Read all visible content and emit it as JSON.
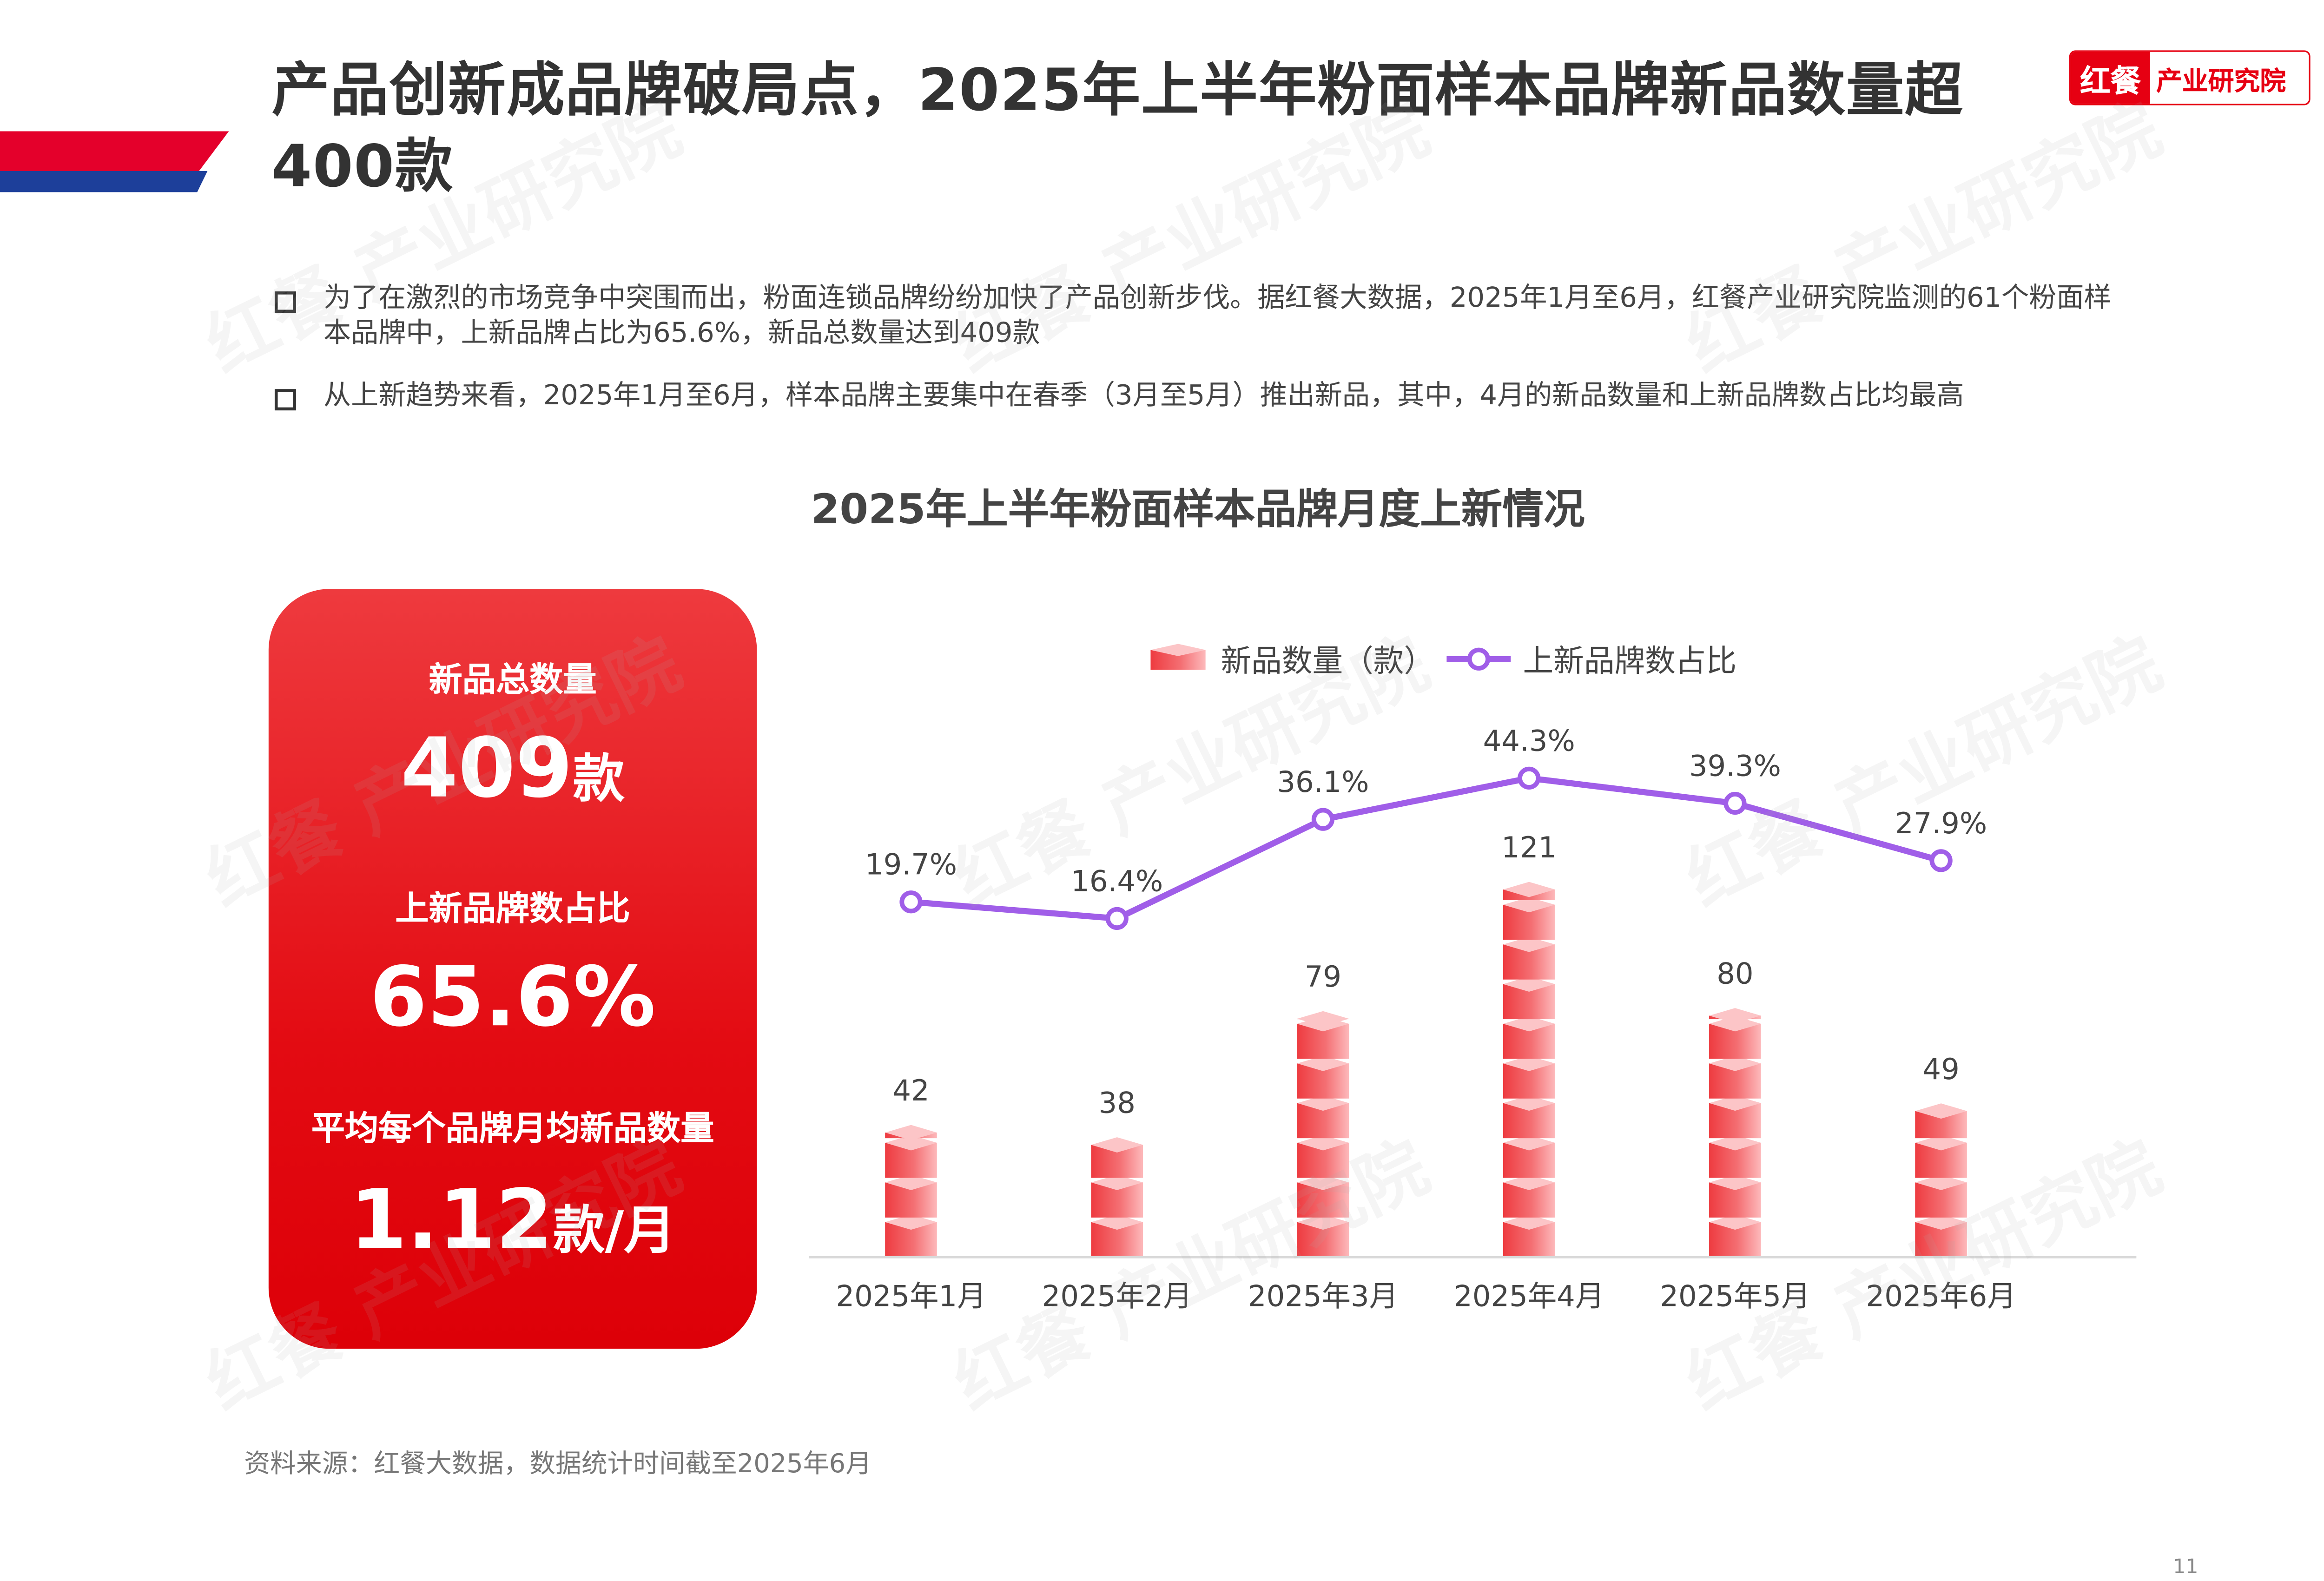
{
  "header": {
    "title": "产品创新成品牌破局点，2025年上半年粉面样本品牌新品数量超400款",
    "logo_mark": "红餐",
    "logo_text": "产业研究院"
  },
  "bullets": [
    "为了在激烈的市场竞争中突围而出，粉面连锁品牌纷纷加快了产品创新步伐。据红餐大数据，2025年1月至6月，红餐产业研究院监测的61个粉面样本品牌中，上新品牌占比为65.6%，新品总数量达到409款",
    "从上新趋势来看，2025年1月至6月，样本品牌主要集中在春季（3月至5月）推出新品，其中，4月的新品数量和上新品牌数占比均最高"
  ],
  "card": {
    "label1": "新品总数量",
    "value1": "409",
    "unit1": "款",
    "label2": "上新品牌数占比",
    "value2": "65.6%",
    "label3": "平均每个品牌月均新品数量",
    "value3": "1.12",
    "unit3": "款/月"
  },
  "chart_data": {
    "type": "bar",
    "title": "2025年上半年粉面样本品牌月度上新情况",
    "categories": [
      "2025年1月",
      "2025年2月",
      "2025年3月",
      "2025年4月",
      "2025年5月",
      "2025年6月"
    ],
    "series": [
      {
        "name": "新品数量（款）",
        "type": "bar",
        "values": [
          42,
          38,
          79,
          121,
          80,
          49
        ],
        "labels": [
          "42",
          "38",
          "79",
          "121",
          "80",
          "49"
        ],
        "color": "#f26a6e"
      },
      {
        "name": "上新品牌数占比",
        "type": "line",
        "values": [
          19.7,
          16.4,
          36.1,
          44.3,
          39.3,
          27.9
        ],
        "labels": [
          "19.7%",
          "16.4%",
          "36.1%",
          "44.3%",
          "39.3%",
          "27.9%"
        ],
        "color": "#a05ee8"
      }
    ],
    "legend": "top-center",
    "grid": false
  },
  "colors": {
    "accent_red": "#e30b12",
    "accent_blue": "#1d3f9a",
    "bar_light": "#fdb9bb",
    "bar_dark": "#ee3b40",
    "line": "#a05ee8"
  },
  "footer": {
    "source": "资料来源：红餐大数据，数据统计时间截至2025年6月",
    "page": "11"
  },
  "watermark": "红餐 产业研究院"
}
